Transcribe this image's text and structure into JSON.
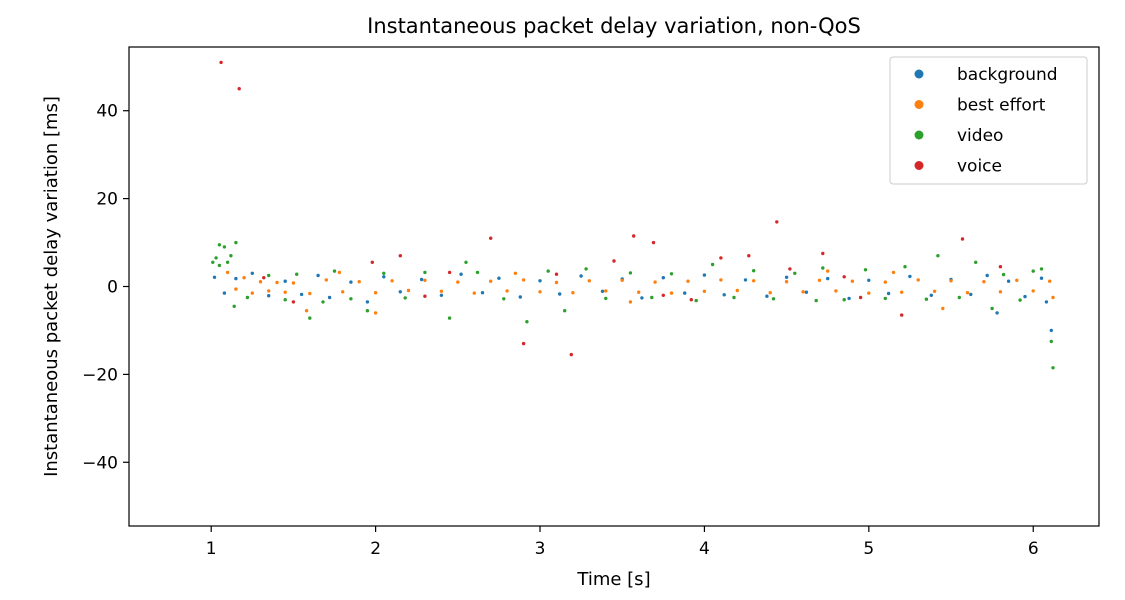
{
  "chart_data": {
    "type": "scatter",
    "title": "Instantaneous packet delay variation, non-QoS",
    "xlabel": "Time [s]",
    "ylabel": "Instantaneous packet delay variation [ms]",
    "xlim": [
      0.5,
      6.4
    ],
    "ylim": [
      -54.5,
      54.5
    ],
    "xticks": [
      1,
      2,
      3,
      4,
      5,
      6
    ],
    "yticks": [
      -40,
      -20,
      0,
      20,
      40
    ],
    "ytick_labels": [
      "−40",
      "−20",
      "0",
      "20",
      "40"
    ],
    "grid": false,
    "legend_position": "top-right",
    "series": [
      {
        "name": "background",
        "color": "#1f77b4",
        "points": [
          [
            1.02,
            2.1
          ],
          [
            1.08,
            -1.5
          ],
          [
            1.15,
            1.8
          ],
          [
            1.25,
            3.0
          ],
          [
            1.35,
            -2.1
          ],
          [
            1.45,
            1.2
          ],
          [
            1.55,
            -1.8
          ],
          [
            1.65,
            2.5
          ],
          [
            1.72,
            -2.5
          ],
          [
            1.85,
            1.0
          ],
          [
            1.95,
            -3.5
          ],
          [
            2.05,
            2.2
          ],
          [
            2.15,
            -1.2
          ],
          [
            2.28,
            1.6
          ],
          [
            2.4,
            -2.0
          ],
          [
            2.52,
            2.8
          ],
          [
            2.65,
            -1.4
          ],
          [
            2.75,
            1.9
          ],
          [
            2.88,
            -2.4
          ],
          [
            3.0,
            1.3
          ],
          [
            3.12,
            -1.7
          ],
          [
            3.25,
            2.4
          ],
          [
            3.38,
            -1.1
          ],
          [
            3.5,
            1.7
          ],
          [
            3.62,
            -2.6
          ],
          [
            3.75,
            2.0
          ],
          [
            3.88,
            -1.5
          ],
          [
            4.0,
            2.6
          ],
          [
            4.12,
            -1.9
          ],
          [
            4.25,
            1.5
          ],
          [
            4.38,
            -2.2
          ],
          [
            4.5,
            2.1
          ],
          [
            4.62,
            -1.3
          ],
          [
            4.75,
            1.8
          ],
          [
            4.88,
            -2.7
          ],
          [
            5.0,
            1.4
          ],
          [
            5.12,
            -1.6
          ],
          [
            5.25,
            2.3
          ],
          [
            5.38,
            -2.0
          ],
          [
            5.5,
            1.6
          ],
          [
            5.62,
            -1.8
          ],
          [
            5.72,
            2.5
          ],
          [
            5.78,
            -6.0
          ],
          [
            5.85,
            1.2
          ],
          [
            5.95,
            -2.3
          ],
          [
            6.05,
            1.9
          ],
          [
            6.08,
            -3.5
          ],
          [
            6.11,
            -10.0
          ]
        ]
      },
      {
        "name": "best effort",
        "color": "#ff7f0e",
        "points": [
          [
            1.1,
            3.2
          ],
          [
            1.15,
            -0.6
          ],
          [
            1.2,
            2.0
          ],
          [
            1.25,
            -1.5
          ],
          [
            1.3,
            1.1
          ],
          [
            1.35,
            -1.0
          ],
          [
            1.4,
            0.9
          ],
          [
            1.45,
            -1.3
          ],
          [
            1.5,
            0.8
          ],
          [
            1.6,
            -1.6
          ],
          [
            1.7,
            1.5
          ],
          [
            1.8,
            -1.2
          ],
          [
            1.9,
            1.1
          ],
          [
            2.0,
            -1.4
          ],
          [
            2.1,
            1.3
          ],
          [
            2.2,
            -0.9
          ],
          [
            2.3,
            1.4
          ],
          [
            2.4,
            -1.1
          ],
          [
            2.5,
            1.0
          ],
          [
            2.6,
            -1.5
          ],
          [
            2.7,
            1.2
          ],
          [
            2.8,
            -1.0
          ],
          [
            2.9,
            1.5
          ],
          [
            3.0,
            -1.2
          ],
          [
            3.1,
            0.9
          ],
          [
            3.2,
            -1.4
          ],
          [
            3.3,
            1.3
          ],
          [
            3.4,
            -1.0
          ],
          [
            3.5,
            1.4
          ],
          [
            3.6,
            -1.3
          ],
          [
            3.7,
            1.0
          ],
          [
            3.8,
            -1.5
          ],
          [
            3.9,
            1.2
          ],
          [
            4.0,
            -1.1
          ],
          [
            4.1,
            1.5
          ],
          [
            4.2,
            -0.9
          ],
          [
            4.3,
            1.3
          ],
          [
            4.4,
            -1.4
          ],
          [
            4.5,
            1.1
          ],
          [
            4.6,
            -1.2
          ],
          [
            4.7,
            1.4
          ],
          [
            4.8,
            -1.0
          ],
          [
            4.9,
            1.2
          ],
          [
            5.0,
            -1.5
          ],
          [
            5.1,
            1.0
          ],
          [
            5.2,
            -1.3
          ],
          [
            5.3,
            1.5
          ],
          [
            5.4,
            -1.1
          ],
          [
            5.5,
            1.3
          ],
          [
            5.6,
            -1.4
          ],
          [
            5.7,
            1.1
          ],
          [
            5.8,
            -1.2
          ],
          [
            5.9,
            1.4
          ],
          [
            6.0,
            -1.0
          ],
          [
            6.1,
            1.2
          ],
          [
            2.0,
            -6.0
          ],
          [
            5.45,
            -5.0
          ],
          [
            1.58,
            -5.5
          ],
          [
            3.55,
            -3.5
          ],
          [
            4.75,
            3.5
          ],
          [
            2.85,
            3.0
          ],
          [
            5.15,
            3.2
          ],
          [
            1.78,
            3.2
          ],
          [
            6.12,
            -2.5
          ]
        ]
      },
      {
        "name": "video",
        "color": "#2ca02c",
        "points": [
          [
            1.01,
            5.5
          ],
          [
            1.03,
            6.5
          ],
          [
            1.05,
            9.5
          ],
          [
            1.08,
            9.0
          ],
          [
            1.12,
            7.0
          ],
          [
            1.15,
            10.0
          ],
          [
            1.05,
            4.8
          ],
          [
            1.1,
            5.5
          ],
          [
            1.14,
            -4.5
          ],
          [
            1.22,
            -2.5
          ],
          [
            1.35,
            2.5
          ],
          [
            1.45,
            -3.0
          ],
          [
            1.52,
            2.8
          ],
          [
            1.6,
            -7.2
          ],
          [
            1.68,
            -3.5
          ],
          [
            1.75,
            3.5
          ],
          [
            1.85,
            -2.8
          ],
          [
            1.95,
            -5.5
          ],
          [
            2.05,
            3.0
          ],
          [
            2.18,
            -2.6
          ],
          [
            2.3,
            3.2
          ],
          [
            2.45,
            -7.2
          ],
          [
            2.55,
            5.5
          ],
          [
            2.62,
            3.2
          ],
          [
            2.78,
            -2.8
          ],
          [
            2.92,
            -8.0
          ],
          [
            3.05,
            3.5
          ],
          [
            3.15,
            -5.5
          ],
          [
            3.28,
            4.0
          ],
          [
            3.4,
            -2.7
          ],
          [
            3.55,
            3.1
          ],
          [
            3.68,
            -2.5
          ],
          [
            3.8,
            2.9
          ],
          [
            3.95,
            -3.2
          ],
          [
            4.05,
            5.0
          ],
          [
            4.18,
            -2.5
          ],
          [
            4.3,
            3.6
          ],
          [
            4.42,
            -2.8
          ],
          [
            4.55,
            3.0
          ],
          [
            4.68,
            -3.2
          ],
          [
            4.72,
            4.2
          ],
          [
            4.85,
            -3.0
          ],
          [
            4.98,
            3.8
          ],
          [
            5.1,
            -2.7
          ],
          [
            5.22,
            4.5
          ],
          [
            5.35,
            -2.9
          ],
          [
            5.42,
            7.0
          ],
          [
            5.55,
            -2.5
          ],
          [
            5.65,
            5.5
          ],
          [
            5.75,
            -5.0
          ],
          [
            5.82,
            2.7
          ],
          [
            5.92,
            -3.1
          ],
          [
            6.0,
            3.5
          ],
          [
            6.05,
            4.0
          ],
          [
            6.11,
            -12.5
          ],
          [
            6.12,
            -18.5
          ]
        ]
      },
      {
        "name": "voice",
        "color": "#d62728",
        "points": [
          [
            1.06,
            51.0
          ],
          [
            1.17,
            45.0
          ],
          [
            1.32,
            2.0
          ],
          [
            1.98,
            5.5
          ],
          [
            2.15,
            7.0
          ],
          [
            2.45,
            3.2
          ],
          [
            2.7,
            11.0
          ],
          [
            2.9,
            -13.0
          ],
          [
            3.1,
            2.8
          ],
          [
            3.19,
            -15.5
          ],
          [
            3.45,
            5.8
          ],
          [
            3.57,
            11.5
          ],
          [
            3.69,
            10.0
          ],
          [
            3.92,
            -3.0
          ],
          [
            4.1,
            6.5
          ],
          [
            4.27,
            7.0
          ],
          [
            4.44,
            14.7
          ],
          [
            4.52,
            4.0
          ],
          [
            4.72,
            7.5
          ],
          [
            4.95,
            -2.5
          ],
          [
            5.2,
            -6.5
          ],
          [
            5.57,
            10.8
          ],
          [
            5.8,
            4.5
          ],
          [
            1.5,
            -3.5
          ],
          [
            2.3,
            -2.2
          ],
          [
            3.75,
            -2.0
          ],
          [
            4.85,
            2.2
          ]
        ]
      }
    ]
  }
}
